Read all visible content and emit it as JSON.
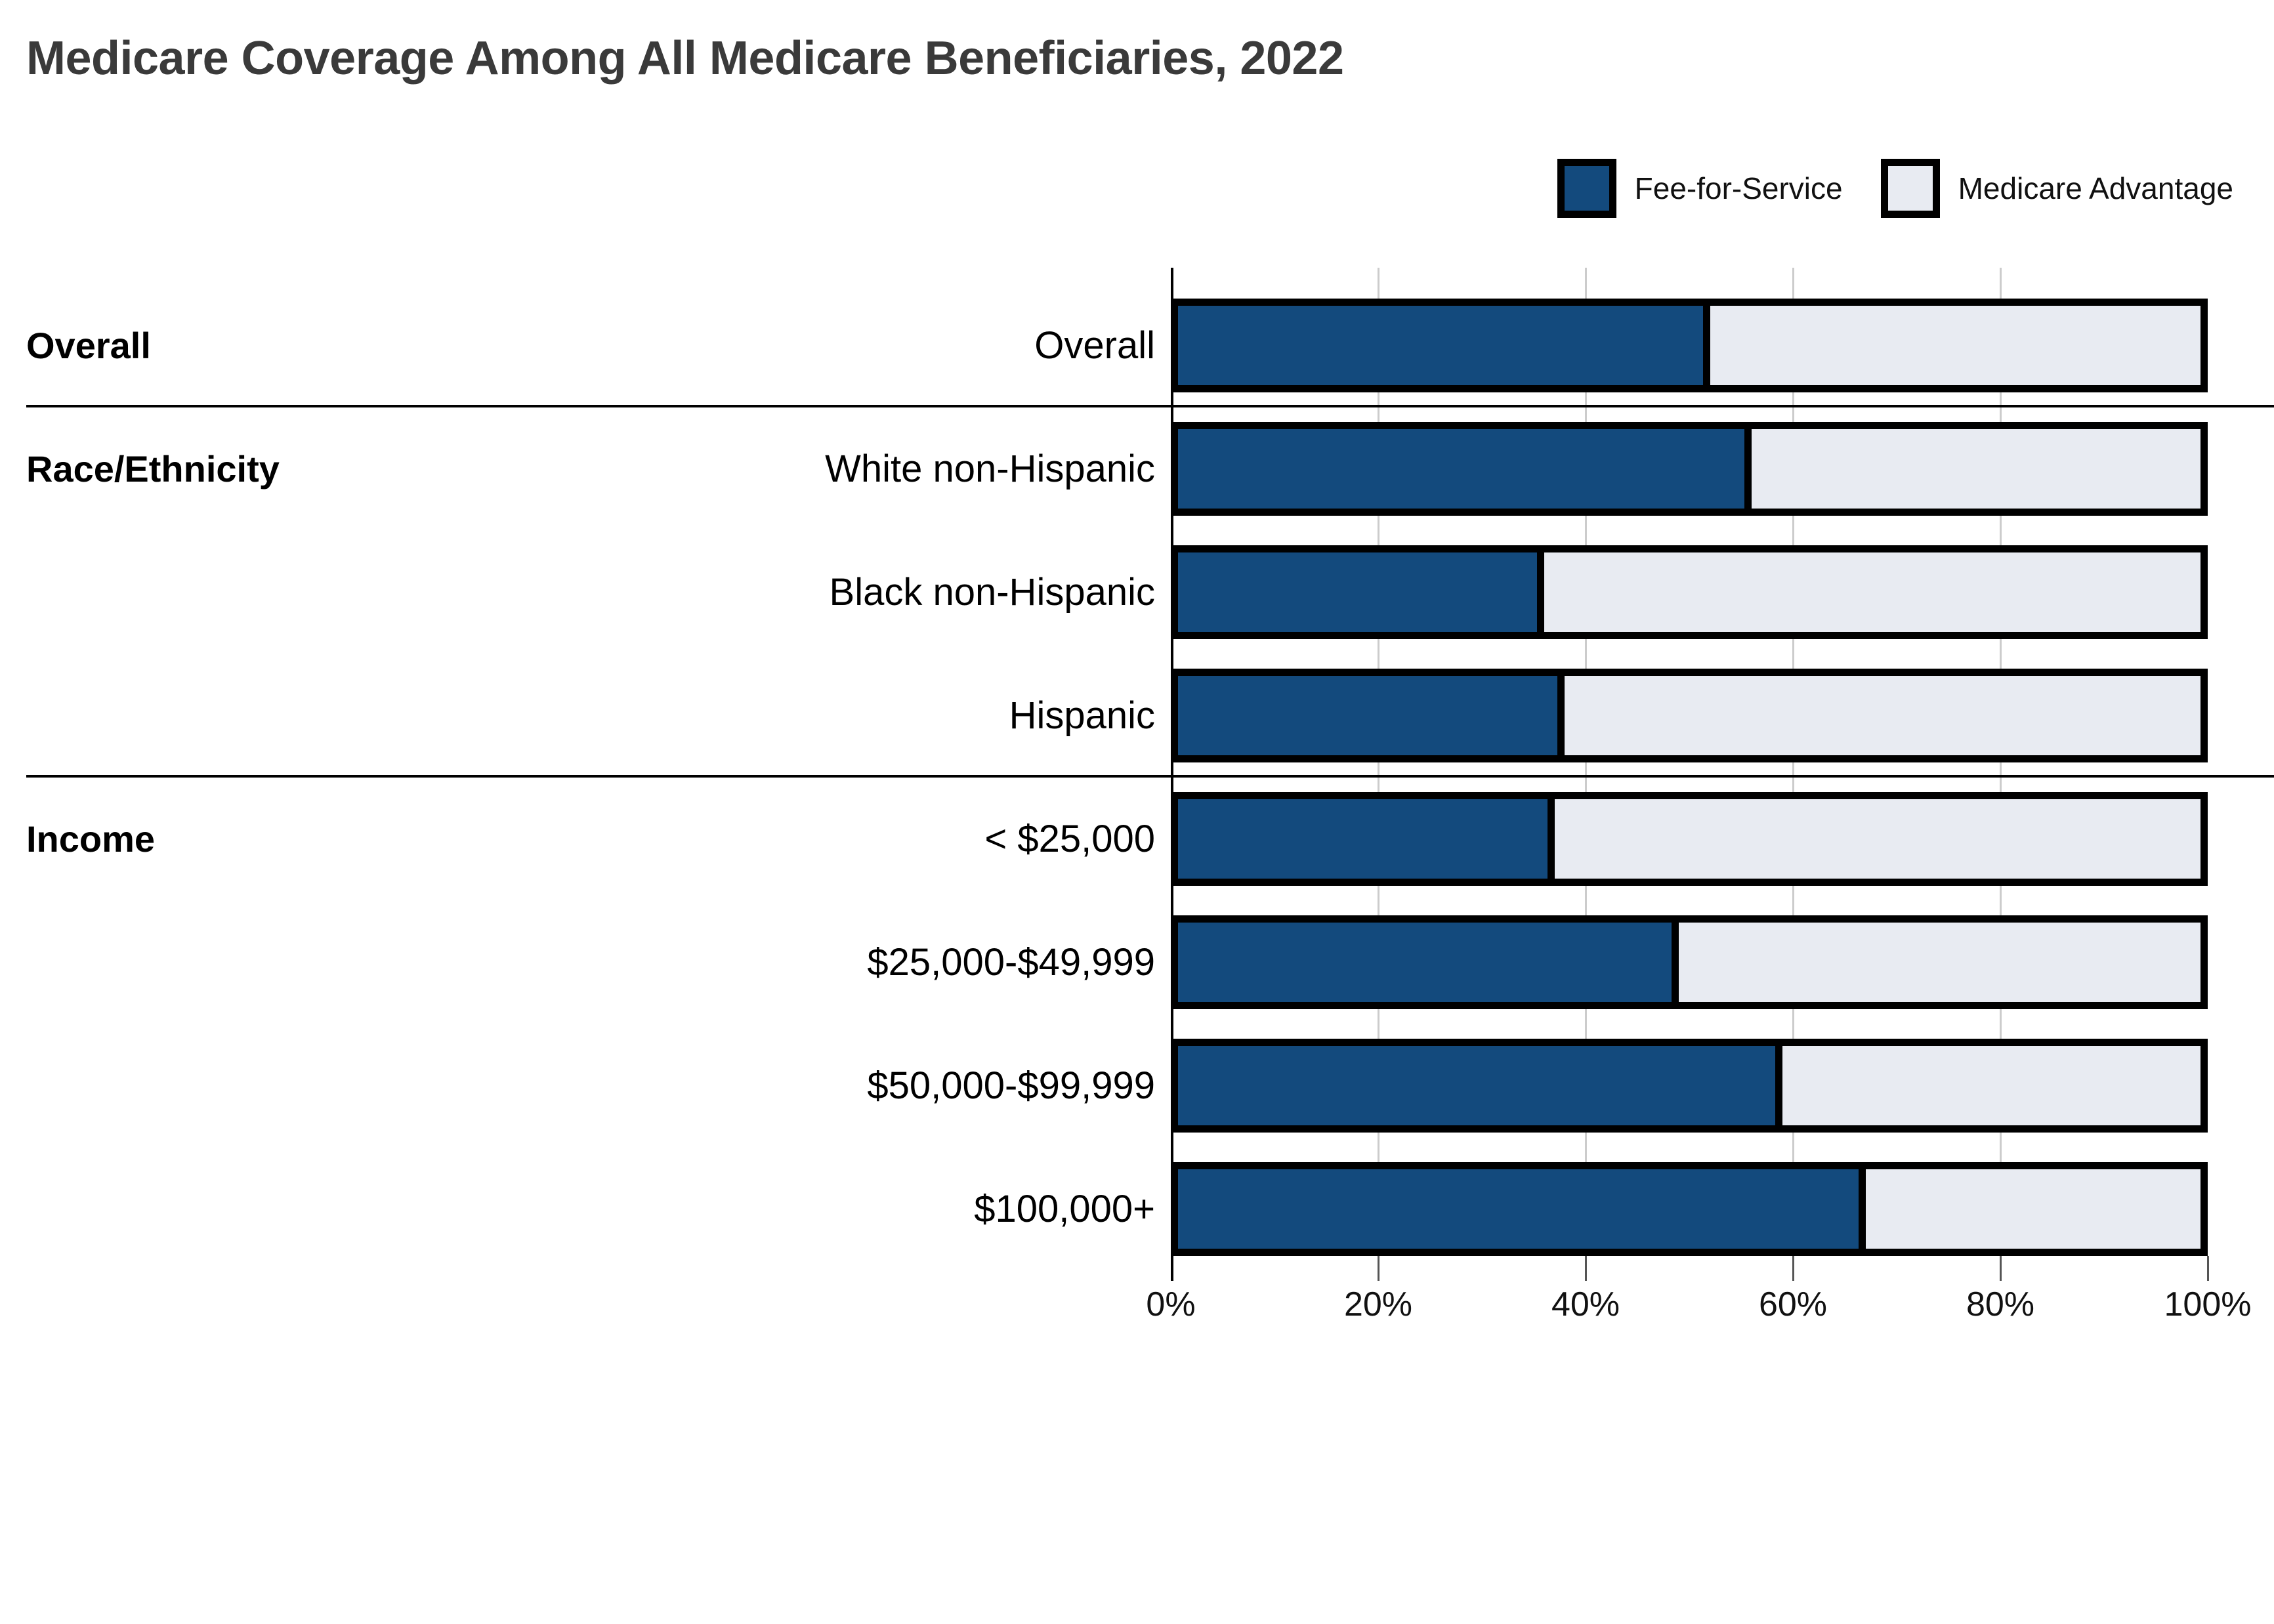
{
  "title": "Medicare Coverage Among All Medicare Beneficiaries, 2022",
  "legend": [
    {
      "label": "Fee-for-Service",
      "color": "#134A7D"
    },
    {
      "label": "Medicare Advantage",
      "color": "#E8EBF2"
    }
  ],
  "chart_data": {
    "type": "bar",
    "orientation": "horizontal",
    "stacked": true,
    "unit": "percent",
    "title": "Medicare Coverage Among All Medicare Beneficiaries, 2022",
    "categories": [
      "Overall",
      "White non-Hispanic",
      "Black non-Hispanic",
      "Hispanic",
      "< $25,000",
      "$25,000-$49,999",
      "$50,000-$99,999",
      "$100,000+"
    ],
    "series": [
      {
        "name": "Fee-for-Service",
        "color": "#134A7D",
        "values": [
          52,
          56,
          36,
          38,
          37,
          49,
          59,
          67
        ]
      },
      {
        "name": "Medicare Advantage",
        "color": "#E8EBF2",
        "values": [
          48,
          44,
          64,
          62,
          63,
          51,
          41,
          33
        ]
      }
    ],
    "sections": [
      {
        "label": "Overall",
        "start_row": 0
      },
      {
        "label": "Race/Ethnicity",
        "start_row": 1
      },
      {
        "label": "Income",
        "start_row": 4
      }
    ],
    "x_axis": {
      "min": 0,
      "max": 100,
      "tick_labels": [
        "0%",
        "20%",
        "40%",
        "60%",
        "80%",
        "100%"
      ]
    },
    "grid": true,
    "legend_position": "top-right"
  }
}
